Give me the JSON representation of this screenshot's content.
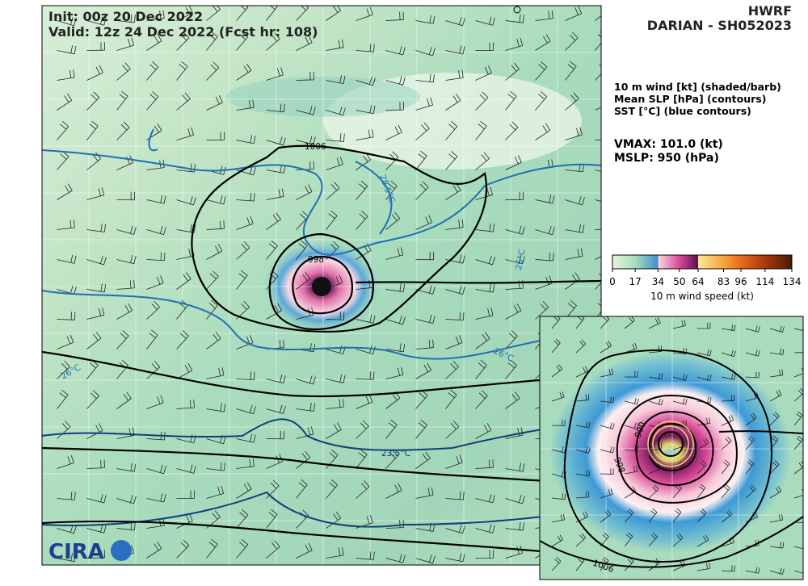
{
  "header": {
    "init": "Init:   00z 20 Dec 2022",
    "valid": "Valid: 12z 24 Dec 2022 (Fcst hr: 108)",
    "model": "HWRF",
    "storm": "DARIAN - SH052023"
  },
  "legend": {
    "lines": [
      "10 m wind [kt] (shaded/barb)",
      "Mean SLP [hPa] (contours)",
      "SST [°C] (blue contours)"
    ],
    "vmax": "VMAX: 101.0 (kt)",
    "mslp": "MSLP:  950 (hPa)"
  },
  "colorbar": {
    "lim": [
      0,
      134
    ],
    "ticks": [
      0,
      17,
      34,
      50,
      64,
      83,
      96,
      114,
      134
    ],
    "label": "10 m wind speed (kt)"
  },
  "main_map": {
    "contour_labels": [
      "1006",
      "998",
      "28.5°C",
      "26°C",
      "26°C",
      "26°C",
      "23.5°C"
    ],
    "logo": "CIRA"
  },
  "inset_map": {
    "contour_labels": [
      "1006",
      "998",
      "990"
    ]
  }
}
